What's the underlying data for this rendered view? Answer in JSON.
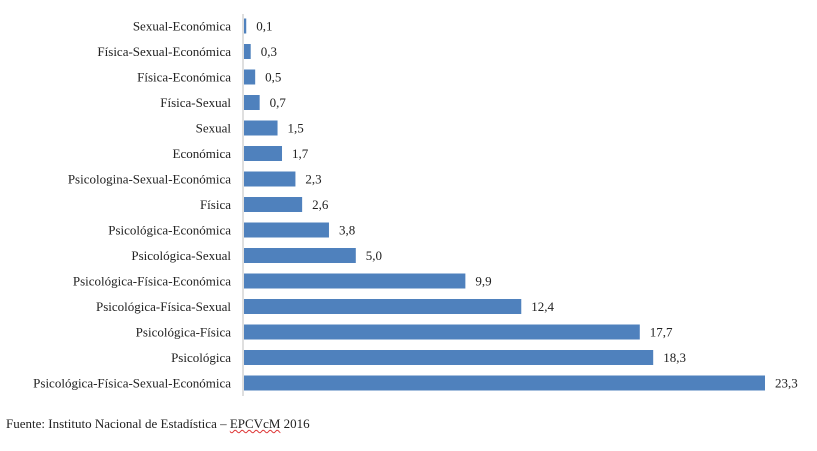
{
  "chart_data": {
    "type": "bar",
    "orientation": "horizontal",
    "categories": [
      "Sexual-Económica",
      "Física-Sexual-Económica",
      "Física-Económica",
      "Física-Sexual",
      "Sexual",
      "Económica",
      "Psicologina-Sexual-Económica",
      "Física",
      "Psicológica-Económica",
      "Psicológica-Sexual",
      "Psicológica-Física-Económica",
      "Psicológica-Física-Sexual",
      "Psicológica-Física",
      "Psicológica",
      "Psicológica-Física-Sexual-Económica"
    ],
    "values": [
      0.1,
      0.3,
      0.5,
      0.7,
      1.5,
      1.7,
      2.3,
      2.6,
      3.8,
      5.0,
      9.9,
      12.4,
      17.7,
      18.3,
      23.3
    ],
    "value_labels": [
      "0,1",
      "0,3",
      "0,5",
      "0,7",
      "1,5",
      "1,7",
      "2,3",
      "2,6",
      "3,8",
      "5,0",
      "9,9",
      "12,4",
      "17,7",
      "18,3",
      "23,3"
    ],
    "xlim": [
      0,
      23.3
    ],
    "bar_color": "#4f81bd",
    "grid": false,
    "legend": "none"
  },
  "source": {
    "prefix": "Fuente: Instituto Nacional de Estadística – ",
    "survey": "EPCVcM",
    "year": " 2016"
  }
}
